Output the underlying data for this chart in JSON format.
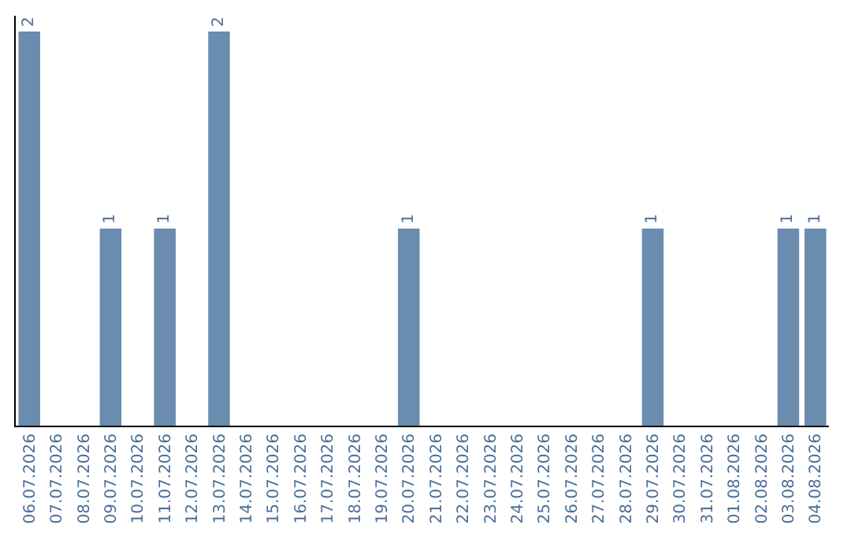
{
  "chart_data": {
    "type": "bar",
    "categories": [
      "06.07.2026",
      "07.07.2026",
      "08.07.2026",
      "09.07.2026",
      "10.07.2026",
      "11.07.2026",
      "12.07.2026",
      "13.07.2026",
      "14.07.2026",
      "15.07.2026",
      "16.07.2026",
      "17.07.2026",
      "18.07.2026",
      "19.07.2026",
      "20.07.2026",
      "21.07.2026",
      "22.07.2026",
      "23.07.2026",
      "24.07.2026",
      "25.07.2026",
      "26.07.2026",
      "27.07.2026",
      "28.07.2026",
      "29.07.2026",
      "30.07.2026",
      "31.07.2026",
      "01.08.2026",
      "02.08.2026",
      "03.08.2026",
      "04.08.2026"
    ],
    "values": [
      2,
      0,
      0,
      1,
      0,
      1,
      0,
      2,
      0,
      0,
      0,
      0,
      0,
      0,
      1,
      0,
      0,
      0,
      0,
      0,
      0,
      0,
      0,
      1,
      0,
      0,
      0,
      0,
      1,
      1
    ],
    "value_labels": [
      "2",
      null,
      null,
      "1",
      null,
      "1",
      null,
      "2",
      null,
      null,
      null,
      null,
      null,
      null,
      "1",
      null,
      null,
      null,
      null,
      null,
      null,
      null,
      null,
      "1",
      null,
      null,
      null,
      null,
      "1",
      "1"
    ],
    "color": "#6a8caf",
    "ylim": [
      0,
      2.08
    ],
    "tick_labels": "x",
    "legend": false
  }
}
